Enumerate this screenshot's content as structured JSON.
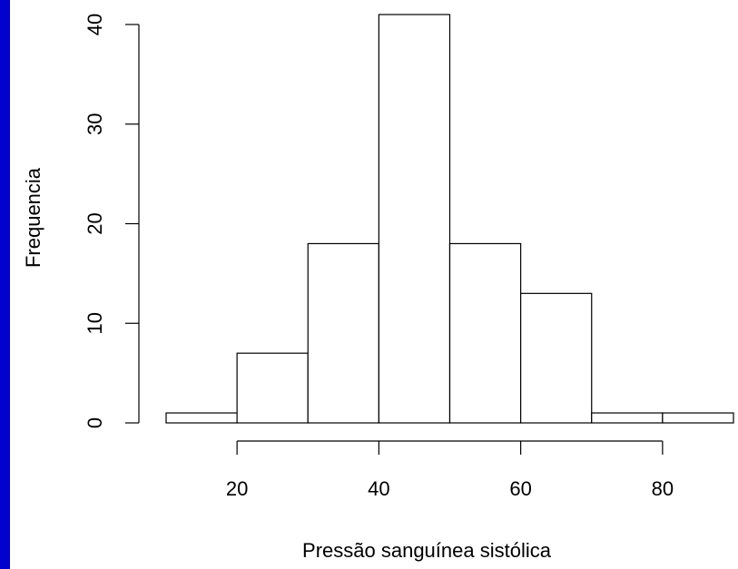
{
  "colors": {
    "edge_strip": "#0000cc",
    "bar_fill": "#ffffff",
    "stroke": "#000000"
  },
  "chart_data": {
    "type": "bar",
    "histogram": true,
    "bins": [
      [
        10,
        20
      ],
      [
        20,
        30
      ],
      [
        30,
        40
      ],
      [
        40,
        50
      ],
      [
        50,
        60
      ],
      [
        60,
        70
      ],
      [
        70,
        80
      ],
      [
        80,
        90
      ]
    ],
    "values": [
      1,
      7,
      18,
      41,
      18,
      13,
      1,
      1
    ],
    "title": "",
    "xlabel": "Pressão sanguínea sistólica",
    "ylabel": "Frequencia",
    "xticks": [
      20,
      40,
      60,
      80
    ],
    "yticks": [
      0,
      10,
      20,
      30,
      40
    ],
    "xlim": [
      20,
      80
    ],
    "ylim": [
      0,
      41
    ],
    "grid": false,
    "legend": "none"
  }
}
